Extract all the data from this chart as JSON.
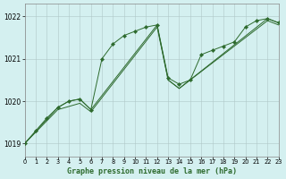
{
  "title": "Graphe pression niveau de la mer (hPa)",
  "background_color": "#d4f0f0",
  "line_color": "#2d6a2d",
  "xlim": [
    0,
    23
  ],
  "ylim": [
    1018.7,
    1022.3
  ],
  "yticks": [
    1019,
    1020,
    1021,
    1022
  ],
  "xticks": [
    0,
    1,
    2,
    3,
    4,
    5,
    6,
    7,
    8,
    9,
    10,
    11,
    12,
    13,
    14,
    15,
    16,
    17,
    18,
    19,
    20,
    21,
    22,
    23
  ],
  "series1": [
    [
      0,
      1019.0
    ],
    [
      1,
      1019.3
    ],
    [
      2,
      1019.6
    ],
    [
      3,
      1019.85
    ],
    [
      4,
      1020.0
    ],
    [
      5,
      1020.05
    ],
    [
      6,
      1019.8
    ],
    [
      7,
      1021.0
    ],
    [
      8,
      1021.35
    ],
    [
      9,
      1021.55
    ],
    [
      10,
      1021.65
    ],
    [
      11,
      1021.75
    ],
    [
      12,
      1021.8
    ],
    [
      13,
      1020.55
    ],
    [
      14,
      1020.4
    ],
    [
      15,
      1020.5
    ],
    [
      16,
      1021.1
    ],
    [
      17,
      1021.2
    ],
    [
      18,
      1021.3
    ],
    [
      19,
      1021.4
    ],
    [
      20,
      1021.75
    ],
    [
      21,
      1021.9
    ],
    [
      22,
      1021.95
    ],
    [
      23,
      1021.85
    ]
  ],
  "series2": [
    [
      0,
      1019.0
    ],
    [
      3,
      1019.85
    ],
    [
      4,
      1020.0
    ],
    [
      5,
      1020.05
    ],
    [
      6,
      1019.8
    ],
    [
      12,
      1021.8
    ],
    [
      13,
      1020.5
    ],
    [
      14,
      1020.3
    ],
    [
      22,
      1021.95
    ],
    [
      23,
      1021.85
    ]
  ],
  "series3": [
    [
      0,
      1019.0
    ],
    [
      3,
      1019.8
    ],
    [
      5,
      1019.95
    ],
    [
      6,
      1019.75
    ],
    [
      12,
      1021.75
    ],
    [
      13,
      1020.5
    ],
    [
      14,
      1020.3
    ],
    [
      22,
      1021.9
    ],
    [
      23,
      1021.8
    ]
  ]
}
